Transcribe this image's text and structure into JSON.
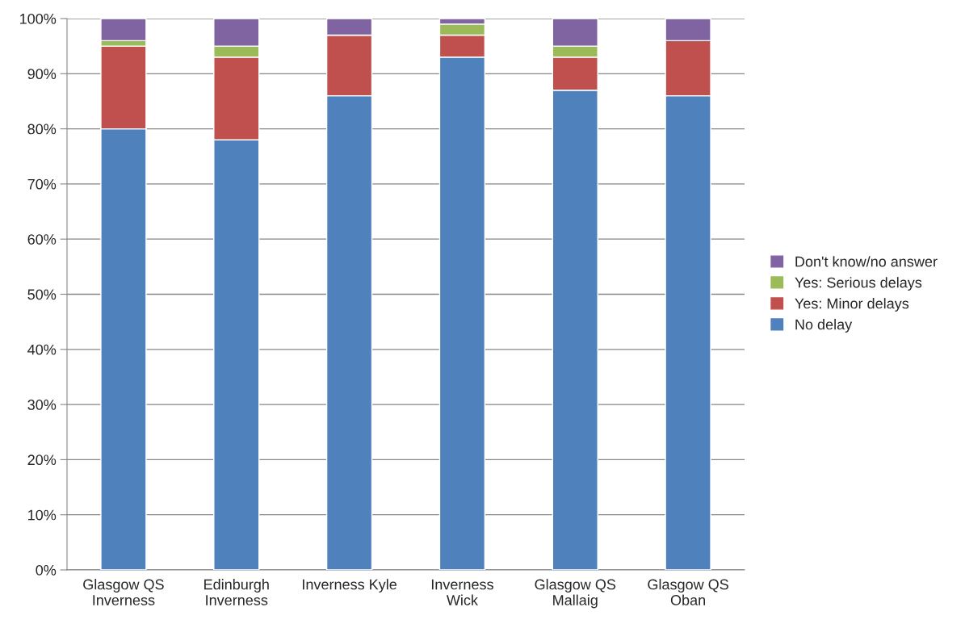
{
  "chart_data": {
    "type": "bar",
    "stacked": true,
    "categories": [
      "Glasgow QS\nInverness",
      "Edinburgh\nInverness",
      "Inverness Kyle",
      "Inverness\nWick",
      "Glasgow QS\nMallaig",
      "Glasgow QS\nOban"
    ],
    "series": [
      {
        "name": "No delay",
        "color": "#4f81bd",
        "values": [
          80,
          78,
          86,
          93,
          87,
          86
        ]
      },
      {
        "name": "Yes: Minor delays",
        "color": "#c0504d",
        "values": [
          15,
          15,
          11,
          4,
          6,
          10
        ]
      },
      {
        "name": "Yes: Serious delays",
        "color": "#9bbb59",
        "values": [
          1,
          2,
          0,
          2,
          2,
          0
        ]
      },
      {
        "name": "Don't know/no answer",
        "color": "#8064a2",
        "values": [
          4,
          5,
          3,
          1,
          5,
          4
        ]
      }
    ],
    "ylim": [
      0,
      100
    ],
    "yticks": [
      {
        "value": 0,
        "label": "0%"
      },
      {
        "value": 10,
        "label": "10%"
      },
      {
        "value": 20,
        "label": "20%"
      },
      {
        "value": 30,
        "label": "30%"
      },
      {
        "value": 40,
        "label": "40%"
      },
      {
        "value": 50,
        "label": "50%"
      },
      {
        "value": 60,
        "label": "60%"
      },
      {
        "value": 70,
        "label": "70%"
      },
      {
        "value": 80,
        "label": "80%"
      },
      {
        "value": 90,
        "label": "90%"
      },
      {
        "value": 100,
        "label": "100%"
      }
    ],
    "grid": "y",
    "legend": "right"
  }
}
